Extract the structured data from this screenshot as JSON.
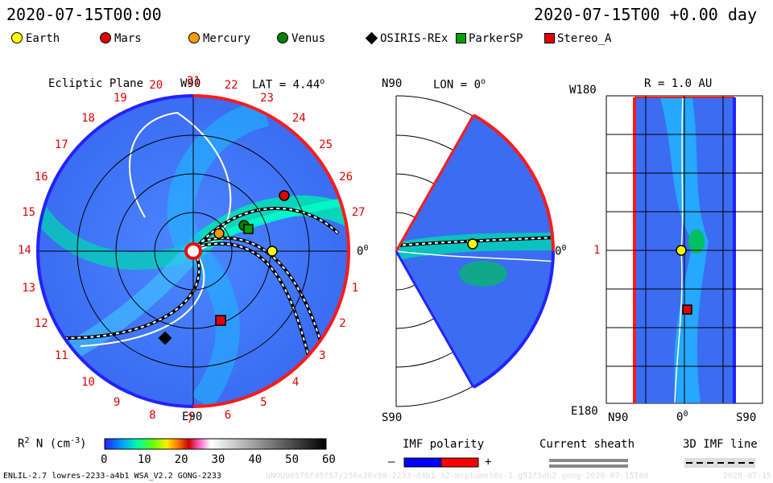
{
  "header": {
    "left_time": "2020-07-15T00:00",
    "right_time": "2020-07-15T00 +0.00 day"
  },
  "legend": [
    {
      "label": "Earth",
      "icon": "earth-marker-icon",
      "color": "#ffff00",
      "shape": "circle"
    },
    {
      "label": "Mars",
      "icon": "mars-marker-icon",
      "color": "#e00000",
      "shape": "circle"
    },
    {
      "label": "Mercury",
      "icon": "mercury-marker-icon",
      "color": "#ff9900",
      "shape": "circle"
    },
    {
      "label": "Venus",
      "icon": "venus-marker-icon",
      "color": "#008000",
      "shape": "circle"
    },
    {
      "label": "OSIRIS-REx",
      "icon": "osiris-rex-marker-icon",
      "color": "#000000",
      "shape": "diamond"
    },
    {
      "label": "ParkerSP",
      "icon": "parker-marker-icon",
      "color": "#00a000",
      "shape": "square"
    },
    {
      "label": "Stereo_A",
      "icon": "stereo-a-marker-icon",
      "color": "#e00000",
      "shape": "square"
    }
  ],
  "ecliptic": {
    "title": "Ecliptic Plane",
    "lat_label": "LAT = 4.44",
    "lat_sup": "o",
    "top_label": "W90",
    "bottom_label": "E90",
    "right_label": "0",
    "right_sup": "0",
    "ticks": [
      "1",
      "2",
      "3",
      "4",
      "5",
      "6",
      "7",
      "8",
      "9",
      "10",
      "11",
      "12",
      "13",
      "14",
      "15",
      "16",
      "17",
      "18",
      "19",
      "20",
      "21",
      "22",
      "23",
      "24",
      "25",
      "26",
      "27"
    ]
  },
  "meridional": {
    "top_left": "N90",
    "title": "LON = 0",
    "title_sup": "o",
    "bottom_left": "S90",
    "right_label": "0",
    "right_sup": "0"
  },
  "radial": {
    "title": "R = 1.0 AU",
    "top_left": "W180",
    "mid_left": "1",
    "bottom_left": "E180",
    "x_left": "N90",
    "x_mid": "0",
    "x_mid_sup": "0",
    "x_right": "S90"
  },
  "colorbar": {
    "label": "R",
    "label_sup": "2",
    "label_rest": " N (cm",
    "label_sup2": "-3",
    "label_end": ")",
    "ticks": [
      "0",
      "10",
      "20",
      "30",
      "40",
      "50",
      "60"
    ]
  },
  "imf_legend": {
    "title": "IMF polarity",
    "minus": "–",
    "plus": "+",
    "neg_color": "#0000ff",
    "pos_color": "#ff0000"
  },
  "sheath_legend": {
    "title": "Current sheath"
  },
  "imf_line_legend": {
    "title": "3D IMF line"
  },
  "footer": {
    "model": "ENLIL-2.7 lowres-2233-a4b1 WSA_V2.2 GONG-2233",
    "run_id": "UNOU005T6fd5f57/256x30x90-2233-d4b1 32-mcptumnt0s-1.g53f5db2 gong-2020-07-15T00",
    "date": "2020-07-15"
  }
}
